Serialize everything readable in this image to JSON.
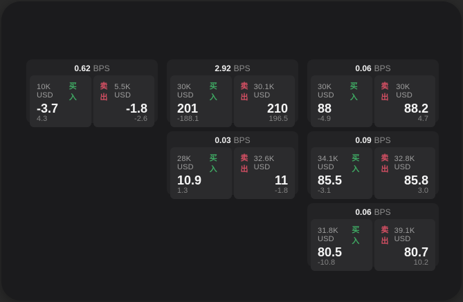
{
  "labels": {
    "buy": "买入",
    "sell": "卖出",
    "bps": "BPS"
  },
  "colors": {
    "buy": "#3fa963",
    "sell": "#d44f63"
  },
  "cards": [
    {
      "row": 1,
      "col": 1,
      "bps": "0.62",
      "buy": {
        "amount": "10K USD",
        "price": "-3.7",
        "delta": "4.3"
      },
      "sell": {
        "amount": "5.5K USD",
        "price": "-1.8",
        "delta": "-2.6"
      }
    },
    {
      "row": 1,
      "col": 2,
      "bps": "2.92",
      "buy": {
        "amount": "30K USD",
        "price": "201",
        "delta": "-188.1"
      },
      "sell": {
        "amount": "30.1K USD",
        "price": "210",
        "delta": "196.5"
      }
    },
    {
      "row": 1,
      "col": 3,
      "bps": "0.06",
      "buy": {
        "amount": "30K USD",
        "price": "88",
        "delta": "-4.9"
      },
      "sell": {
        "amount": "30K USD",
        "price": "88.2",
        "delta": "4.7"
      }
    },
    {
      "row": 2,
      "col": 2,
      "bps": "0.03",
      "buy": {
        "amount": "28K USD",
        "price": "10.9",
        "delta": "1.3"
      },
      "sell": {
        "amount": "32.6K USD",
        "price": "11",
        "delta": "-1.8"
      }
    },
    {
      "row": 2,
      "col": 3,
      "bps": "0.09",
      "buy": {
        "amount": "34.1K USD",
        "price": "85.5",
        "delta": "-3.1"
      },
      "sell": {
        "amount": "32.8K USD",
        "price": "85.8",
        "delta": "3.0"
      }
    },
    {
      "row": 3,
      "col": 3,
      "bps": "0.06",
      "buy": {
        "amount": "31.8K USD",
        "price": "80.5",
        "delta": "-10.8"
      },
      "sell": {
        "amount": "39.1K USD",
        "price": "80.7",
        "delta": "10.2"
      }
    }
  ]
}
